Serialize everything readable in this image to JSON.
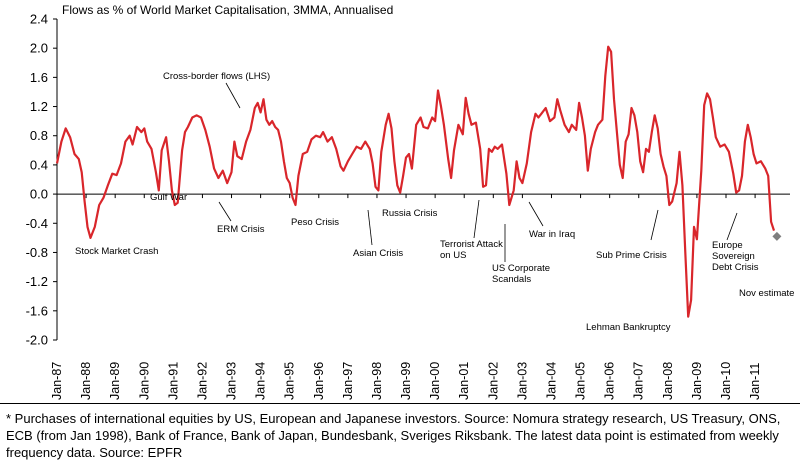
{
  "chart_data": {
    "type": "line",
    "subtitle": "Flows as % of World Market Capitalisation, 3MMA, Annualised",
    "ylim": [
      -2.0,
      2.4
    ],
    "y_ticks": [
      "2.4",
      "2.0",
      "1.6",
      "1.2",
      "0.8",
      "0.4",
      "0.0",
      "-0.4",
      "-0.8",
      "-1.2",
      "-1.6",
      "-2.0"
    ],
    "x_ticks": [
      "Jan-87",
      "Jan-88",
      "Jan-89",
      "Jan-90",
      "Jan-91",
      "Jan-92",
      "Jan-93",
      "Jan-94",
      "Jan-95",
      "Jan-96",
      "Jan-97",
      "Jan-98",
      "Jan-99",
      "Jan-00",
      "Jan-01",
      "Jan-02",
      "Jan-03",
      "Jan-04",
      "Jan-05",
      "Jan-06",
      "Jan-07",
      "Jan-08",
      "Jan-09",
      "Jan-10",
      "Jan-11"
    ],
    "series": [
      {
        "name": "Cross-border flows (LHS)",
        "color": "#d9262b",
        "points": [
          [
            1987.0,
            0.42
          ],
          [
            1987.15,
            0.72
          ],
          [
            1987.3,
            0.9
          ],
          [
            1987.45,
            0.78
          ],
          [
            1987.6,
            0.55
          ],
          [
            1987.75,
            0.48
          ],
          [
            1987.85,
            0.3
          ],
          [
            1987.95,
            -0.1
          ],
          [
            1988.05,
            -0.45
          ],
          [
            1988.15,
            -0.6
          ],
          [
            1988.3,
            -0.45
          ],
          [
            1988.45,
            -0.15
          ],
          [
            1988.6,
            -0.05
          ],
          [
            1988.75,
            0.12
          ],
          [
            1988.9,
            0.28
          ],
          [
            1989.05,
            0.26
          ],
          [
            1989.2,
            0.42
          ],
          [
            1989.35,
            0.72
          ],
          [
            1989.5,
            0.8
          ],
          [
            1989.6,
            0.68
          ],
          [
            1989.75,
            0.92
          ],
          [
            1989.9,
            0.85
          ],
          [
            1990.0,
            0.9
          ],
          [
            1990.1,
            0.72
          ],
          [
            1990.25,
            0.62
          ],
          [
            1990.4,
            0.3
          ],
          [
            1990.5,
            0.05
          ],
          [
            1990.6,
            0.6
          ],
          [
            1990.75,
            0.78
          ],
          [
            1990.85,
            0.45
          ],
          [
            1990.95,
            0.05
          ],
          [
            1991.05,
            -0.15
          ],
          [
            1991.15,
            -0.12
          ],
          [
            1991.3,
            0.6
          ],
          [
            1991.4,
            0.85
          ],
          [
            1991.5,
            0.92
          ],
          [
            1991.65,
            1.05
          ],
          [
            1991.8,
            1.08
          ],
          [
            1991.95,
            1.05
          ],
          [
            1992.1,
            0.88
          ],
          [
            1992.25,
            0.65
          ],
          [
            1992.4,
            0.35
          ],
          [
            1992.55,
            0.22
          ],
          [
            1992.7,
            0.32
          ],
          [
            1992.85,
            0.15
          ],
          [
            1993.0,
            0.3
          ],
          [
            1993.1,
            0.72
          ],
          [
            1993.2,
            0.52
          ],
          [
            1993.35,
            0.48
          ],
          [
            1993.5,
            0.72
          ],
          [
            1993.65,
            0.88
          ],
          [
            1993.8,
            1.18
          ],
          [
            1993.9,
            1.25
          ],
          [
            1994.0,
            1.12
          ],
          [
            1994.1,
            1.3
          ],
          [
            1994.2,
            1.02
          ],
          [
            1994.3,
            0.95
          ],
          [
            1994.4,
            1.0
          ],
          [
            1994.5,
            0.92
          ],
          [
            1994.6,
            0.88
          ],
          [
            1994.7,
            0.72
          ],
          [
            1994.8,
            0.45
          ],
          [
            1994.9,
            0.22
          ],
          [
            1995.0,
            0.15
          ],
          [
            1995.1,
            -0.05
          ],
          [
            1995.2,
            -0.15
          ],
          [
            1995.3,
            0.25
          ],
          [
            1995.45,
            0.55
          ],
          [
            1995.6,
            0.58
          ],
          [
            1995.75,
            0.75
          ],
          [
            1995.9,
            0.8
          ],
          [
            1996.05,
            0.78
          ],
          [
            1996.15,
            0.85
          ],
          [
            1996.3,
            0.72
          ],
          [
            1996.45,
            0.78
          ],
          [
            1996.6,
            0.62
          ],
          [
            1996.75,
            0.38
          ],
          [
            1996.85,
            0.32
          ],
          [
            1997.0,
            0.45
          ],
          [
            1997.15,
            0.55
          ],
          [
            1997.3,
            0.65
          ],
          [
            1997.45,
            0.62
          ],
          [
            1997.6,
            0.72
          ],
          [
            1997.75,
            0.62
          ],
          [
            1997.85,
            0.42
          ],
          [
            1997.95,
            0.1
          ],
          [
            1998.05,
            0.05
          ],
          [
            1998.15,
            0.58
          ],
          [
            1998.3,
            0.95
          ],
          [
            1998.4,
            1.1
          ],
          [
            1998.5,
            0.9
          ],
          [
            1998.6,
            0.45
          ],
          [
            1998.7,
            0.12
          ],
          [
            1998.8,
            0.02
          ],
          [
            1998.9,
            0.25
          ],
          [
            1999.0,
            0.5
          ],
          [
            1999.1,
            0.55
          ],
          [
            1999.2,
            0.35
          ],
          [
            1999.35,
            0.95
          ],
          [
            1999.5,
            1.05
          ],
          [
            1999.6,
            0.92
          ],
          [
            1999.75,
            0.9
          ],
          [
            1999.9,
            1.05
          ],
          [
            2000.0,
            1.0
          ],
          [
            2000.1,
            1.42
          ],
          [
            2000.2,
            1.2
          ],
          [
            2000.3,
            0.95
          ],
          [
            2000.45,
            0.48
          ],
          [
            2000.55,
            0.22
          ],
          [
            2000.65,
            0.6
          ],
          [
            2000.8,
            0.95
          ],
          [
            2000.95,
            0.82
          ],
          [
            2001.05,
            1.32
          ],
          [
            2001.15,
            1.1
          ],
          [
            2001.25,
            0.95
          ],
          [
            2001.4,
            0.98
          ],
          [
            2001.55,
            0.62
          ],
          [
            2001.65,
            0.1
          ],
          [
            2001.75,
            0.12
          ],
          [
            2001.85,
            0.62
          ],
          [
            2001.95,
            0.58
          ],
          [
            2002.05,
            0.65
          ],
          [
            2002.15,
            0.62
          ],
          [
            2002.3,
            0.68
          ],
          [
            2002.45,
            0.28
          ],
          [
            2002.55,
            -0.15
          ],
          [
            2002.7,
            0.05
          ],
          [
            2002.8,
            0.45
          ],
          [
            2002.9,
            0.22
          ],
          [
            2003.0,
            0.15
          ],
          [
            2003.15,
            0.42
          ],
          [
            2003.3,
            0.85
          ],
          [
            2003.45,
            1.1
          ],
          [
            2003.55,
            1.05
          ],
          [
            2003.65,
            1.1
          ],
          [
            2003.8,
            1.18
          ],
          [
            2003.95,
            1.0
          ],
          [
            2004.1,
            1.05
          ],
          [
            2004.2,
            1.3
          ],
          [
            2004.3,
            1.15
          ],
          [
            2004.45,
            0.95
          ],
          [
            2004.6,
            0.85
          ],
          [
            2004.7,
            0.95
          ],
          [
            2004.85,
            0.88
          ],
          [
            2004.95,
            1.25
          ],
          [
            2005.05,
            1.05
          ],
          [
            2005.15,
            0.8
          ],
          [
            2005.25,
            0.32
          ],
          [
            2005.35,
            0.62
          ],
          [
            2005.5,
            0.85
          ],
          [
            2005.6,
            0.95
          ],
          [
            2005.75,
            1.02
          ],
          [
            2005.85,
            1.62
          ],
          [
            2005.95,
            2.02
          ],
          [
            2006.05,
            1.95
          ],
          [
            2006.15,
            1.3
          ],
          [
            2006.25,
            0.85
          ],
          [
            2006.35,
            0.4
          ],
          [
            2006.45,
            0.22
          ],
          [
            2006.55,
            0.72
          ],
          [
            2006.65,
            0.82
          ],
          [
            2006.75,
            1.18
          ],
          [
            2006.85,
            1.08
          ],
          [
            2006.95,
            0.85
          ],
          [
            2007.05,
            0.45
          ],
          [
            2007.15,
            0.3
          ],
          [
            2007.25,
            0.62
          ],
          [
            2007.35,
            0.58
          ],
          [
            2007.45,
            0.85
          ],
          [
            2007.55,
            1.08
          ],
          [
            2007.65,
            0.9
          ],
          [
            2007.75,
            0.55
          ],
          [
            2007.85,
            0.38
          ],
          [
            2007.95,
            0.25
          ],
          [
            2008.05,
            -0.15
          ],
          [
            2008.15,
            -0.1
          ],
          [
            2008.3,
            0.15
          ],
          [
            2008.4,
            0.58
          ],
          [
            2008.5,
            0.12
          ],
          [
            2008.6,
            -0.8
          ],
          [
            2008.7,
            -1.68
          ],
          [
            2008.8,
            -1.45
          ],
          [
            2008.9,
            -0.45
          ],
          [
            2009.0,
            -0.62
          ],
          [
            2009.15,
            0.32
          ],
          [
            2009.25,
            1.22
          ],
          [
            2009.35,
            1.38
          ],
          [
            2009.45,
            1.3
          ],
          [
            2009.55,
            1.05
          ],
          [
            2009.65,
            0.78
          ],
          [
            2009.8,
            0.65
          ],
          [
            2009.95,
            0.68
          ],
          [
            2010.1,
            0.58
          ],
          [
            2010.25,
            0.28
          ],
          [
            2010.35,
            0.02
          ],
          [
            2010.45,
            0.05
          ],
          [
            2010.55,
            0.25
          ],
          [
            2010.65,
            0.72
          ],
          [
            2010.75,
            0.95
          ],
          [
            2010.85,
            0.78
          ],
          [
            2010.95,
            0.55
          ],
          [
            2011.05,
            0.42
          ],
          [
            2011.2,
            0.45
          ],
          [
            2011.35,
            0.35
          ],
          [
            2011.45,
            0.25
          ],
          [
            2011.55,
            -0.38
          ],
          [
            2011.65,
            -0.5
          ]
        ]
      }
    ],
    "estimate_point": {
      "label": "Nov estimate",
      "x": 2011.75,
      "y": -0.58,
      "color": "#7f7f7f"
    },
    "annotations": [
      {
        "text": "Cross-border flows (LHS)",
        "pointer": true
      },
      {
        "text": "Stock Market Crash"
      },
      {
        "text": "Gulf War"
      },
      {
        "text": "ERM Crisis",
        "pointer": true
      },
      {
        "text": "Peso Crisis"
      },
      {
        "text": "Russia Crisis"
      },
      {
        "text": "Asian Crisis",
        "pointer": true
      },
      {
        "text": "Terrorist Attack on US",
        "pointer": true
      },
      {
        "text": "US Corporate Scandals",
        "pointer": true
      },
      {
        "text": "War in Iraq",
        "pointer": true
      },
      {
        "text": "Sub Prime Crisis",
        "pointer": true
      },
      {
        "text": "Lehman Bankruptcy"
      },
      {
        "text": "Europe Sovereign Debt Crisis",
        "pointer": true
      },
      {
        "text": "Nov estimate"
      }
    ]
  },
  "footnote": "* Purchases of international equities by US, European and Japanese investors. Source: Nomura strategy research, US Treasury, ONS, ECB (from Jan 1998), Bank of France, Bank of Japan, Bundesbank, Sveriges Riksbank. The latest data point is estimated from weekly frequency data. Source: EPFR"
}
